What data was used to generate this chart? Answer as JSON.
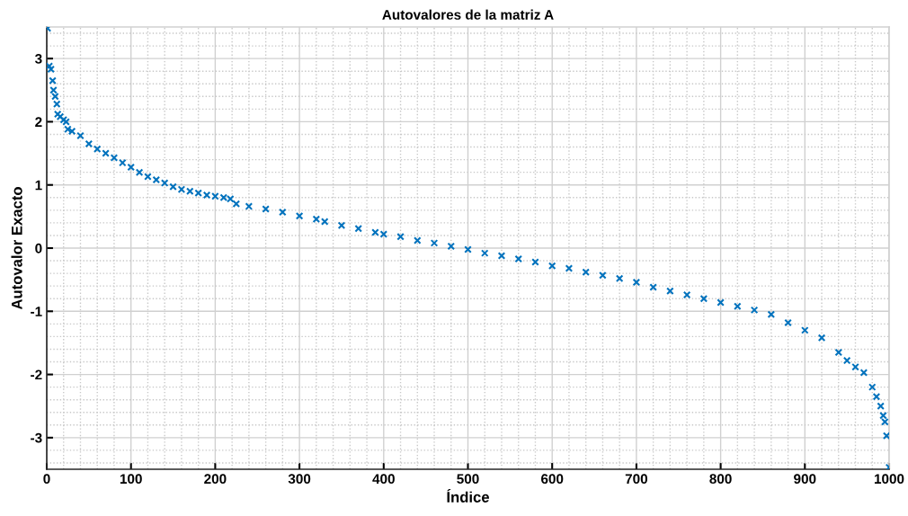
{
  "chart_data": {
    "type": "scatter",
    "title": "Autovalores de la matriz A",
    "xlabel": "Índice",
    "ylabel": "Autovalor Exacto",
    "marker": "cross",
    "grid": true,
    "x": [
      1,
      3,
      5,
      7,
      8,
      10,
      12,
      13,
      16,
      20,
      23,
      25,
      30,
      40,
      50,
      60,
      70,
      80,
      90,
      100,
      110,
      120,
      130,
      140,
      150,
      160,
      170,
      180,
      190,
      200,
      210,
      218,
      225,
      240,
      260,
      280,
      300,
      320,
      330,
      350,
      370,
      390,
      400,
      420,
      440,
      460,
      480,
      500,
      520,
      540,
      560,
      580,
      600,
      620,
      640,
      660,
      680,
      700,
      720,
      740,
      760,
      780,
      800,
      820,
      840,
      860,
      880,
      900,
      920,
      940,
      950,
      960,
      970,
      980,
      985,
      990,
      993,
      995,
      997,
      1000
    ],
    "series": [
      {
        "color": "#0072bd",
        "values": [
          3.48,
          2.88,
          2.83,
          2.65,
          2.5,
          2.4,
          2.28,
          2.12,
          2.08,
          2.03,
          2.0,
          1.88,
          1.85,
          1.78,
          1.65,
          1.57,
          1.5,
          1.43,
          1.35,
          1.28,
          1.2,
          1.13,
          1.08,
          1.03,
          0.97,
          0.93,
          0.9,
          0.87,
          0.84,
          0.82,
          0.8,
          0.78,
          0.7,
          0.66,
          0.62,
          0.57,
          0.51,
          0.46,
          0.42,
          0.36,
          0.31,
          0.25,
          0.22,
          0.18,
          0.12,
          0.08,
          0.03,
          -0.02,
          -0.08,
          -0.12,
          -0.17,
          -0.22,
          -0.28,
          -0.32,
          -0.38,
          -0.43,
          -0.48,
          -0.54,
          -0.62,
          -0.68,
          -0.74,
          -0.8,
          -0.86,
          -0.92,
          -0.98,
          -1.05,
          -1.18,
          -1.3,
          -1.42,
          -1.65,
          -1.78,
          -1.88,
          -1.97,
          -2.2,
          -2.35,
          -2.5,
          -2.65,
          -2.75,
          -2.97,
          -3.47
        ]
      }
    ],
    "xlim": [
      0,
      1000
    ],
    "xticks": [
      0,
      100,
      200,
      300,
      400,
      500,
      600,
      700,
      800,
      900,
      1000
    ],
    "ylim": [
      -3.5,
      3.5
    ],
    "yticks": [
      -3,
      -2,
      -1,
      0,
      1,
      2,
      3
    ]
  }
}
